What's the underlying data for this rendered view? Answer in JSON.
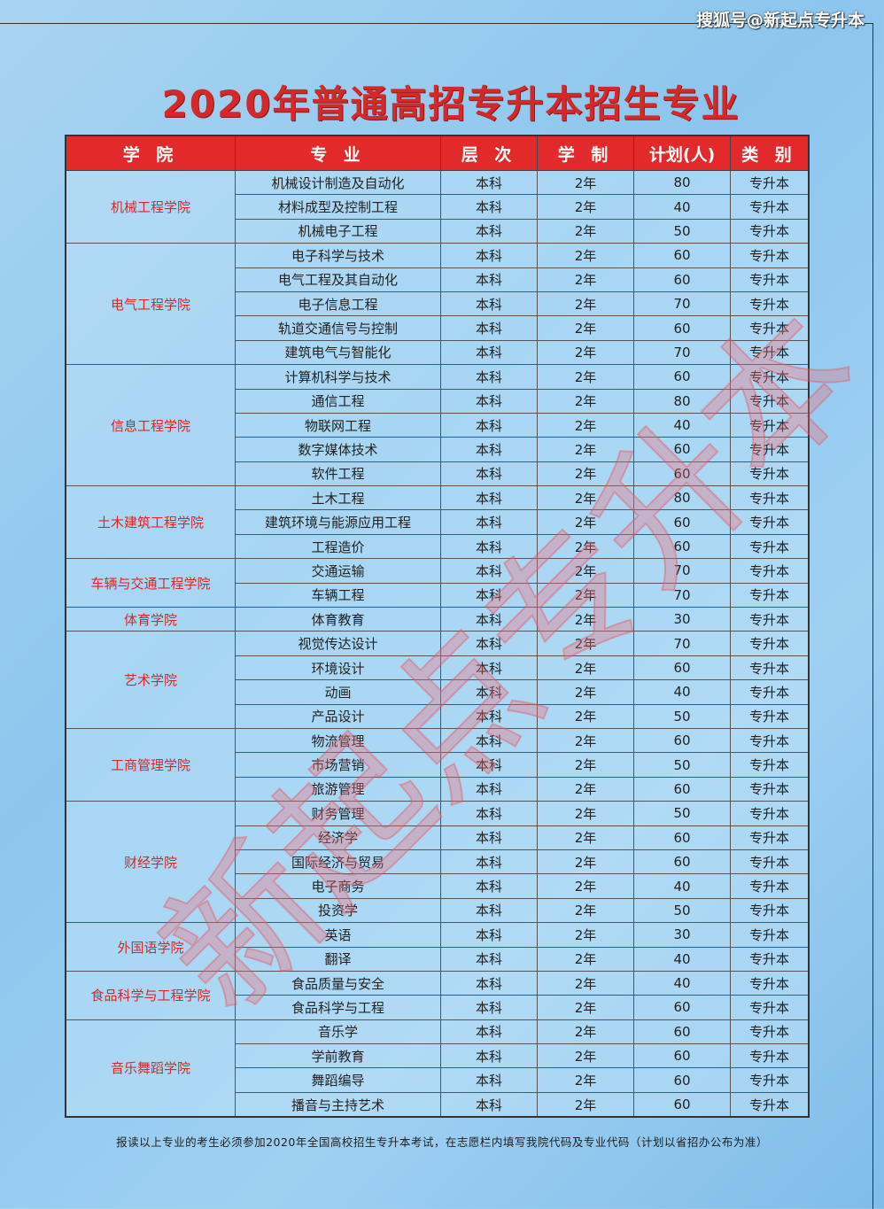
{
  "source_label": "搜狐号@新起点专升本",
  "title": "2020年普通高招专升本招生专业",
  "headers": [
    "学 院",
    "专 业",
    "层 次",
    "学 制",
    "计划(人)",
    "类 别"
  ],
  "colleges": [
    {
      "name": "机械工程学院",
      "majors": [
        [
          "机械设计制造及自动化",
          "本科",
          "2年",
          "80",
          "专升本"
        ],
        [
          "材料成型及控制工程",
          "本科",
          "2年",
          "40",
          "专升本"
        ],
        [
          "机械电子工程",
          "本科",
          "2年",
          "50",
          "专升本"
        ]
      ]
    },
    {
      "name": "电气工程学院",
      "majors": [
        [
          "电子科学与技术",
          "本科",
          "2年",
          "60",
          "专升本"
        ],
        [
          "电气工程及其自动化",
          "本科",
          "2年",
          "60",
          "专升本"
        ],
        [
          "电子信息工程",
          "本科",
          "2年",
          "70",
          "专升本"
        ],
        [
          "轨道交通信号与控制",
          "本科",
          "2年",
          "60",
          "专升本"
        ],
        [
          "建筑电气与智能化",
          "本科",
          "2年",
          "70",
          "专升本"
        ]
      ]
    },
    {
      "name": "信息工程学院",
      "majors": [
        [
          "计算机科学与技术",
          "本科",
          "2年",
          "60",
          "专升本"
        ],
        [
          "通信工程",
          "本科",
          "2年",
          "80",
          "专升本"
        ],
        [
          "物联网工程",
          "本科",
          "2年",
          "40",
          "专升本"
        ],
        [
          "数字媒体技术",
          "本科",
          "2年",
          "60",
          "专升本"
        ],
        [
          "软件工程",
          "本科",
          "2年",
          "60",
          "专升本"
        ]
      ]
    },
    {
      "name": "土木建筑工程学院",
      "majors": [
        [
          "土木工程",
          "本科",
          "2年",
          "80",
          "专升本"
        ],
        [
          "建筑环境与能源应用工程",
          "本科",
          "2年",
          "60",
          "专升本"
        ],
        [
          "工程造价",
          "本科",
          "2年",
          "60",
          "专升本"
        ]
      ]
    },
    {
      "name": "车辆与交通工程学院",
      "majors": [
        [
          "交通运输",
          "本科",
          "2年",
          "70",
          "专升本"
        ],
        [
          "车辆工程",
          "本科",
          "2年",
          "70",
          "专升本"
        ]
      ]
    },
    {
      "name": "体育学院",
      "majors": [
        [
          "体育教育",
          "本科",
          "2年",
          "30",
          "专升本"
        ]
      ]
    },
    {
      "name": "艺术学院",
      "majors": [
        [
          "视觉传达设计",
          "本科",
          "2年",
          "70",
          "专升本"
        ],
        [
          "环境设计",
          "本科",
          "2年",
          "60",
          "专升本"
        ],
        [
          "动画",
          "本科",
          "2年",
          "40",
          "专升本"
        ],
        [
          "产品设计",
          "本科",
          "2年",
          "50",
          "专升本"
        ]
      ]
    },
    {
      "name": "工商管理学院",
      "majors": [
        [
          "物流管理",
          "本科",
          "2年",
          "60",
          "专升本"
        ],
        [
          "市场营销",
          "本科",
          "2年",
          "50",
          "专升本"
        ],
        [
          "旅游管理",
          "本科",
          "2年",
          "60",
          "专升本"
        ]
      ]
    },
    {
      "name": "财经学院",
      "majors": [
        [
          "财务管理",
          "本科",
          "2年",
          "50",
          "专升本"
        ],
        [
          "经济学",
          "本科",
          "2年",
          "60",
          "专升本"
        ],
        [
          "国际经济与贸易",
          "本科",
          "2年",
          "60",
          "专升本"
        ],
        [
          "电子商务",
          "本科",
          "2年",
          "40",
          "专升本"
        ],
        [
          "投资学",
          "本科",
          "2年",
          "50",
          "专升本"
        ]
      ]
    },
    {
      "name": "外国语学院",
      "majors": [
        [
          "英语",
          "本科",
          "2年",
          "30",
          "专升本"
        ],
        [
          "翻译",
          "本科",
          "2年",
          "40",
          "专升本"
        ]
      ]
    },
    {
      "name": "食品科学与工程学院",
      "majors": [
        [
          "食品质量与安全",
          "本科",
          "2年",
          "40",
          "专升本"
        ],
        [
          "食品科学与工程",
          "本科",
          "2年",
          "60",
          "专升本"
        ]
      ]
    },
    {
      "name": "音乐舞蹈学院",
      "majors": [
        [
          "音乐学",
          "本科",
          "2年",
          "60",
          "专升本"
        ],
        [
          "学前教育",
          "本科",
          "2年",
          "60",
          "专升本"
        ],
        [
          "舞蹈编导",
          "本科",
          "2年",
          "60",
          "专升本"
        ],
        [
          "播音与主持艺术",
          "本科",
          "2年",
          "60",
          "专升本"
        ]
      ]
    }
  ],
  "footnote": "报读以上专业的考生必须参加2020年全国高校招生专升本考试，在志愿栏内填写我院代码及专业代码（计划以省招办公布为准）",
  "watermark": "新起点专升本",
  "colors": {
    "header_bg": "#e32a2a",
    "title": "#d22a2a",
    "college_text": "#d22a2a"
  }
}
